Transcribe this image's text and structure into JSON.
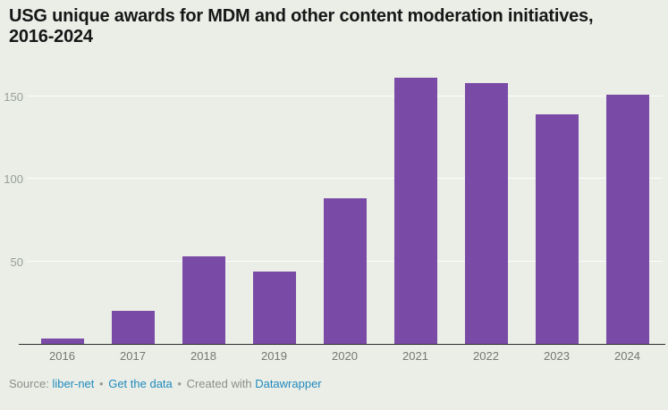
{
  "title": {
    "line1": "USG unique awards for MDM and other content moderation initiatives,",
    "line2": "2016-2024"
  },
  "chart_data": {
    "type": "bar",
    "title": "USG unique awards for MDM and other content moderation initiatives, 2016-2024",
    "categories": [
      "2016",
      "2017",
      "2018",
      "2019",
      "2020",
      "2021",
      "2022",
      "2023",
      "2024"
    ],
    "values": [
      3,
      20,
      53,
      44,
      88,
      161,
      158,
      139,
      151
    ],
    "xlabel": "",
    "ylabel": "",
    "ylim": [
      0,
      165
    ],
    "yticks": [
      50,
      100,
      150
    ],
    "grid": "horizontal-faint",
    "legend": "none",
    "bar_color": "#7a4ba6"
  },
  "footer": {
    "source_label": "Source:",
    "source_link": "liber-net",
    "separator": "•",
    "get_data_link": "Get the data",
    "created_with": "Created with",
    "tool_link": "Datawrapper"
  },
  "colors": {
    "background": "#eaeee7",
    "bar": "#7a4ba6",
    "axis_line": "#2d2d2d",
    "y_tick_label": "#999f98",
    "x_tick_label": "#76766f",
    "footer_text": "#8d8d8b",
    "link": "#2189bd",
    "title_text": "#161616"
  }
}
